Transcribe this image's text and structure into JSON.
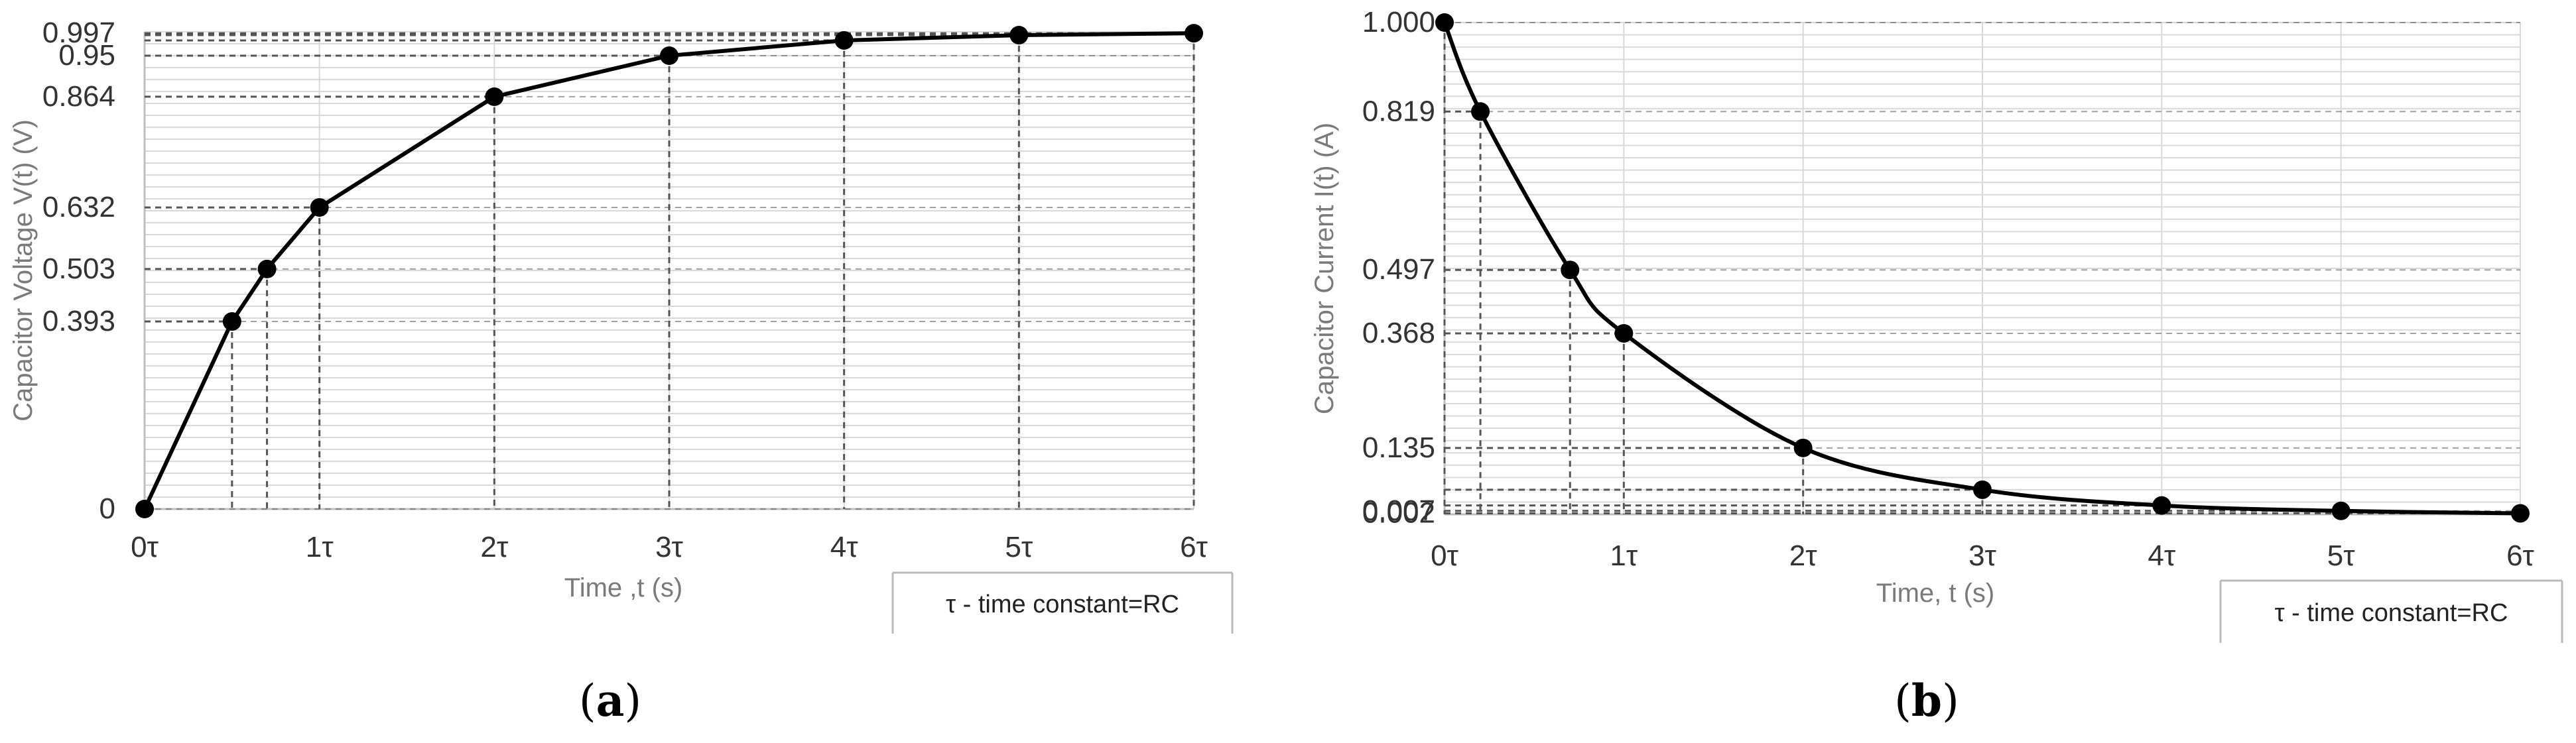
{
  "chart_data": [
    {
      "type": "line",
      "panel_label": "a",
      "xlabel": "Time ,t (s)",
      "ylabel": "Capacitor Voltage V(t) (V)",
      "x_ticks": [
        "0τ",
        "1τ",
        "2τ",
        "3τ",
        "4τ",
        "5τ",
        "6τ"
      ],
      "x_tick_values": [
        0,
        1,
        2,
        3,
        4,
        5,
        6
      ],
      "y_ticks": [
        "0",
        "0.393",
        "0.503",
        "0.632",
        "0.864",
        "0.95",
        "0.997"
      ],
      "y_tick_values": [
        0,
        0.393,
        0.503,
        0.632,
        0.864,
        0.95,
        0.997
      ],
      "xlim": [
        0,
        6
      ],
      "ylim": [
        0,
        1.0
      ],
      "grid": true,
      "series": [
        {
          "x": [
            0,
            0.5,
            0.7,
            1,
            2,
            3,
            4,
            5,
            6
          ],
          "y": [
            0,
            0.393,
            0.503,
            0.632,
            0.864,
            0.95,
            0.982,
            0.993,
            0.997
          ]
        }
      ],
      "note": "τ - time constant=RC"
    },
    {
      "type": "line",
      "panel_label": "b",
      "xlabel": "Time, t (s)",
      "ylabel": "Capacitor Current  I(t) (A)",
      "x_ticks": [
        "0τ",
        "1τ",
        "2τ",
        "3τ",
        "4τ",
        "5τ",
        "6τ"
      ],
      "x_tick_values": [
        0,
        1,
        2,
        3,
        4,
        5,
        6
      ],
      "y_ticks": [
        "0.002",
        "0.007",
        "0.135",
        "0.368",
        "0.497",
        "0.819",
        "1.000"
      ],
      "y_tick_values": [
        0.002,
        0.007,
        0.135,
        0.368,
        0.497,
        0.819,
        1.0
      ],
      "xlim": [
        0,
        6
      ],
      "ylim": [
        0,
        1.0
      ],
      "grid": true,
      "series": [
        {
          "x": [
            0,
            0.2,
            0.7,
            1,
            2,
            3,
            4,
            5,
            6
          ],
          "y": [
            1.0,
            0.819,
            0.497,
            0.368,
            0.135,
            0.05,
            0.018,
            0.007,
            0.002
          ]
        }
      ],
      "note": "τ - time constant=RC"
    }
  ],
  "style": {
    "line_color": "#000000",
    "marker_color": "#000000",
    "grid_color": "#d9d9d9",
    "guide_color": "#555555",
    "tick_text_color": "#333333",
    "axis_title_color": "#7a7a7a"
  }
}
